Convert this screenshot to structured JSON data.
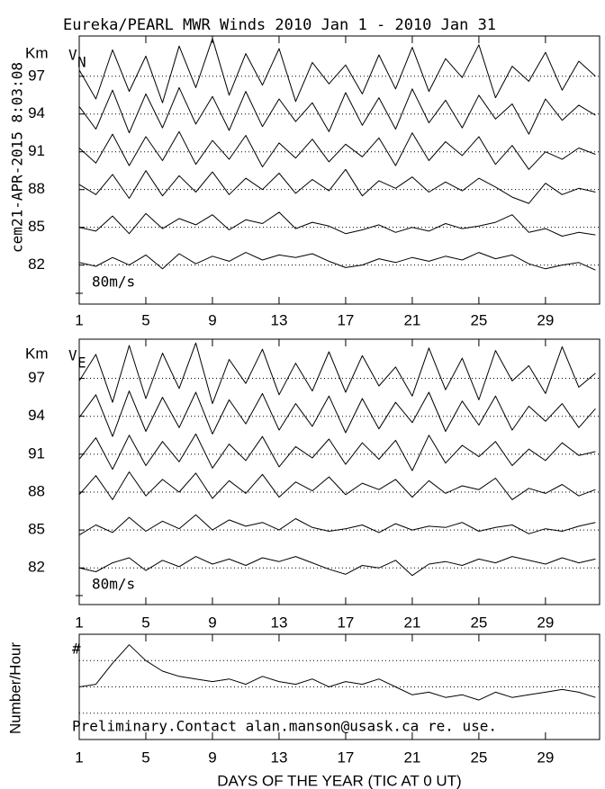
{
  "chart_data": [
    {
      "type": "line",
      "title": "Eureka/PEARL MWR Winds 2010 Jan  1 - 2010 Jan 31",
      "annotation": "cem21-APR-2015  8:03:08",
      "ylabel": "Km",
      "panel_label": {
        "main": "V",
        "sub": "N"
      },
      "scale_label": "80m/s",
      "xlim": [
        1,
        32.25
      ],
      "xticks": [
        1,
        5,
        9,
        13,
        17,
        21,
        25,
        29
      ],
      "ylim": [
        78.9,
        100.2
      ],
      "yticks": [
        97,
        94,
        91,
        88,
        85,
        82
      ],
      "grid": true,
      "x": [
        1,
        2,
        3,
        4,
        5,
        6,
        7,
        8,
        9,
        10,
        11,
        12,
        13,
        14,
        15,
        16,
        17,
        18,
        19,
        20,
        21,
        22,
        23,
        24,
        25,
        26,
        27,
        28,
        29,
        30,
        31,
        32
      ],
      "series": [
        {
          "color": "#000000",
          "values": [
            97.5,
            95.2,
            99.1,
            95.8,
            98.6,
            94.9,
            99.4,
            96.1,
            100.0,
            95.5,
            98.8,
            96.3,
            99.2,
            95.0,
            98.1,
            96.4,
            97.9,
            95.6,
            98.7,
            96.0,
            99.3,
            95.8,
            98.4,
            96.9,
            99.5,
            95.3,
            97.8,
            96.6,
            98.9,
            95.9,
            98.2,
            97.0
          ]
        },
        {
          "color": "#000000",
          "values": [
            94.6,
            92.8,
            95.9,
            92.5,
            95.6,
            92.9,
            96.1,
            93.2,
            95.4,
            92.7,
            95.8,
            93.0,
            95.2,
            93.4,
            94.9,
            92.6,
            95.7,
            93.1,
            95.3,
            92.8,
            96.0,
            93.3,
            95.1,
            92.9,
            95.5,
            93.6,
            94.8,
            92.4,
            95.2,
            93.5,
            94.7,
            93.9
          ]
        },
        {
          "color": "#000000",
          "values": [
            91.3,
            90.1,
            92.4,
            89.9,
            92.2,
            90.3,
            92.6,
            90.0,
            91.9,
            90.4,
            92.3,
            89.8,
            91.7,
            90.5,
            92.0,
            90.2,
            91.6,
            90.6,
            92.1,
            89.9,
            92.5,
            90.3,
            91.8,
            90.7,
            92.2,
            90.0,
            91.5,
            89.6,
            91.0,
            90.4,
            91.3,
            90.8
          ]
        },
        {
          "color": "#000000",
          "values": [
            88.4,
            87.6,
            89.2,
            87.3,
            89.5,
            87.5,
            89.1,
            87.8,
            89.4,
            87.6,
            88.9,
            88.0,
            89.3,
            87.7,
            88.8,
            87.9,
            89.6,
            87.5,
            88.7,
            88.1,
            89.0,
            87.8,
            88.6,
            87.9,
            88.9,
            88.2,
            87.4,
            86.9,
            88.5,
            87.6,
            88.1,
            87.8
          ]
        },
        {
          "color": "#000000",
          "values": [
            85.0,
            84.7,
            85.9,
            84.5,
            86.1,
            84.9,
            85.7,
            85.2,
            86.0,
            84.8,
            85.6,
            85.3,
            86.2,
            84.9,
            85.4,
            85.1,
            84.5,
            84.8,
            85.2,
            84.6,
            85.0,
            84.7,
            85.3,
            84.9,
            85.1,
            85.4,
            86.0,
            84.6,
            84.9,
            84.3,
            84.6,
            84.4
          ]
        },
        {
          "color": "#000000",
          "values": [
            82.2,
            81.9,
            82.6,
            82.0,
            82.8,
            81.7,
            82.9,
            82.1,
            82.7,
            82.3,
            83.0,
            82.4,
            82.8,
            82.6,
            82.9,
            82.3,
            81.8,
            82.0,
            82.5,
            82.2,
            82.6,
            82.3,
            82.7,
            82.4,
            83.0,
            82.5,
            82.8,
            82.1,
            81.7,
            82.0,
            82.2,
            81.6
          ]
        }
      ]
    },
    {
      "type": "line",
      "ylabel": "Km",
      "panel_label": {
        "main": "V",
        "sub": "E"
      },
      "scale_label": "80m/s",
      "xlim": [
        1,
        32.25
      ],
      "xticks": [
        1,
        5,
        9,
        13,
        17,
        21,
        25,
        29
      ],
      "ylim": [
        79.1,
        100.1
      ],
      "yticks": [
        97,
        94,
        91,
        88,
        85,
        82
      ],
      "grid": true,
      "x": [
        1,
        2,
        3,
        4,
        5,
        6,
        7,
        8,
        9,
        10,
        11,
        12,
        13,
        14,
        15,
        16,
        17,
        18,
        19,
        20,
        21,
        22,
        23,
        24,
        25,
        26,
        27,
        28,
        29,
        30,
        31,
        32
      ],
      "series": [
        {
          "color": "#000000",
          "values": [
            96.8,
            98.9,
            95.1,
            99.6,
            95.4,
            99.0,
            96.2,
            99.8,
            95.0,
            98.5,
            96.6,
            99.3,
            95.7,
            98.2,
            96.0,
            99.1,
            95.9,
            98.8,
            96.4,
            97.9,
            95.6,
            99.4,
            96.1,
            98.6,
            95.3,
            99.2,
            96.8,
            98.0,
            95.8,
            99.5,
            96.3,
            97.4
          ]
        },
        {
          "color": "#000000",
          "values": [
            93.9,
            95.7,
            92.4,
            96.0,
            92.8,
            95.5,
            93.1,
            95.9,
            92.6,
            95.3,
            93.4,
            95.8,
            92.9,
            95.0,
            93.2,
            95.6,
            92.7,
            95.4,
            93.0,
            95.1,
            93.5,
            95.9,
            92.8,
            95.2,
            93.3,
            95.6,
            92.9,
            94.8,
            93.6,
            95.0,
            93.1,
            94.6
          ]
        },
        {
          "color": "#000000",
          "values": [
            90.6,
            92.3,
            89.8,
            92.5,
            90.1,
            92.0,
            90.4,
            92.6,
            89.9,
            91.8,
            90.5,
            92.4,
            90.0,
            91.6,
            90.7,
            92.2,
            90.2,
            91.9,
            90.6,
            92.1,
            89.7,
            92.5,
            90.3,
            91.7,
            90.8,
            92.0,
            90.1,
            91.4,
            90.5,
            91.9,
            90.9,
            91.2
          ]
        },
        {
          "color": "#000000",
          "values": [
            87.8,
            89.3,
            87.4,
            89.6,
            87.7,
            89.0,
            88.0,
            89.5,
            87.5,
            88.9,
            87.9,
            89.4,
            87.6,
            88.8,
            88.1,
            89.2,
            87.8,
            88.7,
            88.2,
            89.0,
            87.6,
            88.9,
            87.9,
            88.5,
            88.2,
            89.1,
            87.4,
            88.3,
            87.9,
            88.6,
            87.7,
            88.2
          ]
        },
        {
          "color": "#000000",
          "values": [
            84.6,
            85.4,
            84.8,
            86.0,
            84.9,
            85.7,
            85.1,
            86.2,
            85.0,
            85.8,
            85.3,
            85.6,
            85.0,
            85.9,
            85.2,
            84.9,
            85.1,
            85.4,
            84.8,
            85.5,
            85.0,
            85.3,
            85.2,
            85.6,
            84.9,
            85.2,
            85.4,
            84.7,
            85.1,
            84.9,
            85.3,
            85.6
          ]
        },
        {
          "color": "#000000",
          "values": [
            82.0,
            81.7,
            82.4,
            82.8,
            81.8,
            82.6,
            82.1,
            82.9,
            82.3,
            82.7,
            82.2,
            82.8,
            82.5,
            82.9,
            82.4,
            81.9,
            81.5,
            82.2,
            82.0,
            82.6,
            81.4,
            82.3,
            82.5,
            82.2,
            82.7,
            82.4,
            82.9,
            82.6,
            82.3,
            82.8,
            82.4,
            82.7
          ]
        }
      ]
    },
    {
      "type": "line",
      "ylabel": "Number/Hour",
      "xlabel": "DAYS OF THE YEAR (TIC AT 0 UT)",
      "panel_label": {
        "main": "#"
      },
      "annotation": "Preliminary.Contact alan.manson@usask.ca re. use.",
      "xlim": [
        1,
        32.25
      ],
      "xticks": [
        1,
        5,
        9,
        13,
        17,
        21,
        25,
        29
      ],
      "ylim": [
        0,
        4
      ],
      "gridlines": [
        1,
        2,
        3
      ],
      "x": [
        1,
        2,
        3,
        4,
        5,
        6,
        7,
        8,
        9,
        10,
        11,
        12,
        13,
        14,
        15,
        16,
        17,
        18,
        19,
        20,
        21,
        22,
        23,
        24,
        25,
        26,
        27,
        28,
        29,
        30,
        31,
        32
      ],
      "series": [
        {
          "color": "#000000",
          "values": [
            2.0,
            2.1,
            2.9,
            3.6,
            3.0,
            2.6,
            2.4,
            2.3,
            2.2,
            2.3,
            2.1,
            2.4,
            2.2,
            2.1,
            2.3,
            2.0,
            2.2,
            2.1,
            2.3,
            2.0,
            1.7,
            1.8,
            1.6,
            1.7,
            1.5,
            1.8,
            1.6,
            1.7,
            1.8,
            1.9,
            1.8,
            1.6
          ]
        }
      ]
    }
  ]
}
